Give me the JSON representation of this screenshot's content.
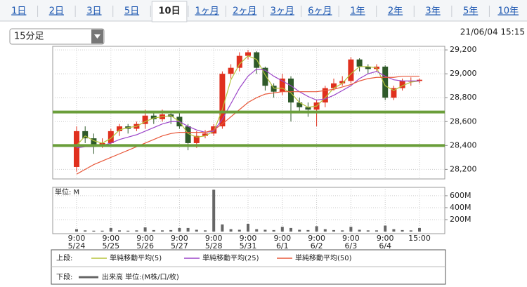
{
  "header": {
    "tabs": [
      "1日",
      "2日",
      "3日",
      "5日",
      "10日",
      "1ヶ月",
      "2ヶ月",
      "3ヶ月",
      "6ヶ月",
      "1年",
      "2年",
      "3年",
      "5年",
      "10年"
    ],
    "selected": 4,
    "interval": "15分足",
    "timestamp": "21/06/04 15:15"
  },
  "chart_data": [
    {
      "type": "candlestick",
      "legend_label": "上段:",
      "up_color": "#e0301e",
      "down_color": "#2f5a2a",
      "open": [
        28220,
        28520,
        28460,
        28400,
        28420,
        28520,
        28560,
        28540,
        28580,
        28650,
        28620,
        28660,
        28640,
        28560,
        28420,
        28480,
        28500,
        28560,
        29000,
        29050,
        29150,
        29180,
        29050,
        28900,
        28850,
        28960,
        28760,
        28720,
        28700,
        28760,
        28880,
        28920,
        28940,
        29120,
        29060,
        29040,
        29060,
        28800,
        28880,
        28940,
        28940
      ],
      "high": [
        28560,
        28560,
        28500,
        28460,
        28540,
        28580,
        28580,
        28600,
        28700,
        28680,
        28700,
        28680,
        28680,
        28580,
        28520,
        28530,
        28580,
        29020,
        29080,
        29180,
        29200,
        29190,
        29060,
        28920,
        29000,
        28980,
        28800,
        28760,
        28780,
        28900,
        28960,
        28980,
        29140,
        29130,
        29080,
        29080,
        29070,
        28900,
        28960,
        28970,
        28960
      ],
      "low": [
        28180,
        28420,
        28330,
        28380,
        28400,
        28480,
        28500,
        28520,
        28540,
        28580,
        28600,
        28580,
        28540,
        28360,
        28380,
        28460,
        28480,
        28540,
        28960,
        29020,
        29120,
        29000,
        28860,
        28800,
        28820,
        28600,
        28680,
        28640,
        28560,
        28720,
        28860,
        28900,
        28920,
        29020,
        29000,
        29020,
        28780,
        28780,
        28860,
        28900,
        28920
      ],
      "close": [
        28520,
        28460,
        28400,
        28420,
        28520,
        28560,
        28540,
        28580,
        28650,
        28620,
        28660,
        28640,
        28560,
        28420,
        28480,
        28500,
        28560,
        29000,
        29050,
        29150,
        29180,
        29050,
        28900,
        28850,
        28960,
        28760,
        28720,
        28700,
        28760,
        28880,
        28920,
        28940,
        29120,
        29060,
        29040,
        29060,
        28800,
        28880,
        28940,
        28940,
        28950
      ],
      "series": [
        {
          "name": "単純移動平均(5)",
          "color": "#b5c43a",
          "values": [
            28400,
            28480,
            28440,
            28420,
            28460,
            28530,
            28550,
            28560,
            28600,
            28630,
            28640,
            28650,
            28600,
            28500,
            28470,
            28480,
            28520,
            28700,
            28950,
            29080,
            29150,
            29120,
            28990,
            28880,
            28880,
            28840,
            28760,
            28720,
            28730,
            28800,
            28880,
            28920,
            29000,
            29060,
            29060,
            29050,
            28900,
            28860,
            28900,
            28930,
            28940
          ]
        },
        {
          "name": "単純移動平均(25)",
          "color": "#9b45c8",
          "values": [
            28380,
            28390,
            28390,
            28400,
            28420,
            28450,
            28470,
            28490,
            28520,
            28550,
            28580,
            28600,
            28600,
            28560,
            28530,
            28510,
            28520,
            28620,
            28750,
            28880,
            28980,
            29040,
            29030,
            28980,
            28940,
            28900,
            28850,
            28810,
            28780,
            28790,
            28820,
            28860,
            28900,
            28960,
            29000,
            29020,
            28980,
            28950,
            28940,
            28940,
            28940
          ]
        },
        {
          "name": "単純移動平均(50)",
          "color": "#e8583a",
          "values": [
            28160,
            28200,
            28240,
            28270,
            28300,
            28330,
            28360,
            28390,
            28420,
            28450,
            28480,
            28500,
            28510,
            28510,
            28510,
            28510,
            28530,
            28580,
            28640,
            28700,
            28760,
            28800,
            28830,
            28840,
            28850,
            28850,
            28850,
            28850,
            28850,
            28860,
            28870,
            28890,
            28910,
            28940,
            28960,
            28970,
            28970,
            28970,
            28980,
            28980,
            28980
          ]
        }
      ],
      "hlines": [
        28680,
        28400
      ],
      "hline_color": "#6a9e3a",
      "ylim": [
        28120,
        29230
      ],
      "yticks": [
        {
          "value": 28200,
          "label": "28,200"
        },
        {
          "value": 28400,
          "label": "28,400"
        },
        {
          "value": 28600,
          "label": "28,600"
        },
        {
          "value": 28800,
          "label": "28,800"
        },
        {
          "value": 29000,
          "label": "29,000"
        },
        {
          "value": 29200,
          "label": "29,200"
        }
      ],
      "grid": true
    },
    {
      "type": "bar",
      "ylabel": "単位: M",
      "legend_label": "下段:",
      "legend_name": "出来高 単位:(M株/口/枚)",
      "color": "#666666",
      "values": [
        40,
        20,
        15,
        15,
        60,
        20,
        15,
        20,
        70,
        25,
        20,
        25,
        60,
        60,
        30,
        20,
        700,
        120,
        40,
        30,
        130,
        40,
        30,
        25,
        80,
        60,
        30,
        25,
        90,
        40,
        25,
        20,
        80,
        30,
        20,
        20,
        100,
        40,
        25,
        20,
        60
      ],
      "ylim": [
        -35,
        740
      ],
      "yticks": [
        {
          "value": 200,
          "label": "200M"
        },
        {
          "value": 400,
          "label": "400M"
        },
        {
          "value": 600,
          "label": "600M"
        }
      ],
      "xticks": [
        {
          "value": 0,
          "label": "9:00"
        },
        {
          "value": 4,
          "label": "9:00"
        },
        {
          "value": 8,
          "label": "9:00"
        },
        {
          "value": 12,
          "label": "9:00"
        },
        {
          "value": 16,
          "label": "9:00"
        },
        {
          "value": 20,
          "label": "9:00"
        },
        {
          "value": 24,
          "label": "9:00"
        },
        {
          "value": 28,
          "label": "9:00"
        },
        {
          "value": 32,
          "label": "9:00"
        },
        {
          "value": 36,
          "label": "9:00"
        },
        {
          "value": 40,
          "label": "15:00"
        }
      ],
      "xtick_dates": [
        "5/24",
        "5/25",
        "5/26",
        "5/27",
        "5/28",
        "5/31",
        "6/1",
        "6/2",
        "6/3",
        "6/4",
        null
      ]
    }
  ]
}
